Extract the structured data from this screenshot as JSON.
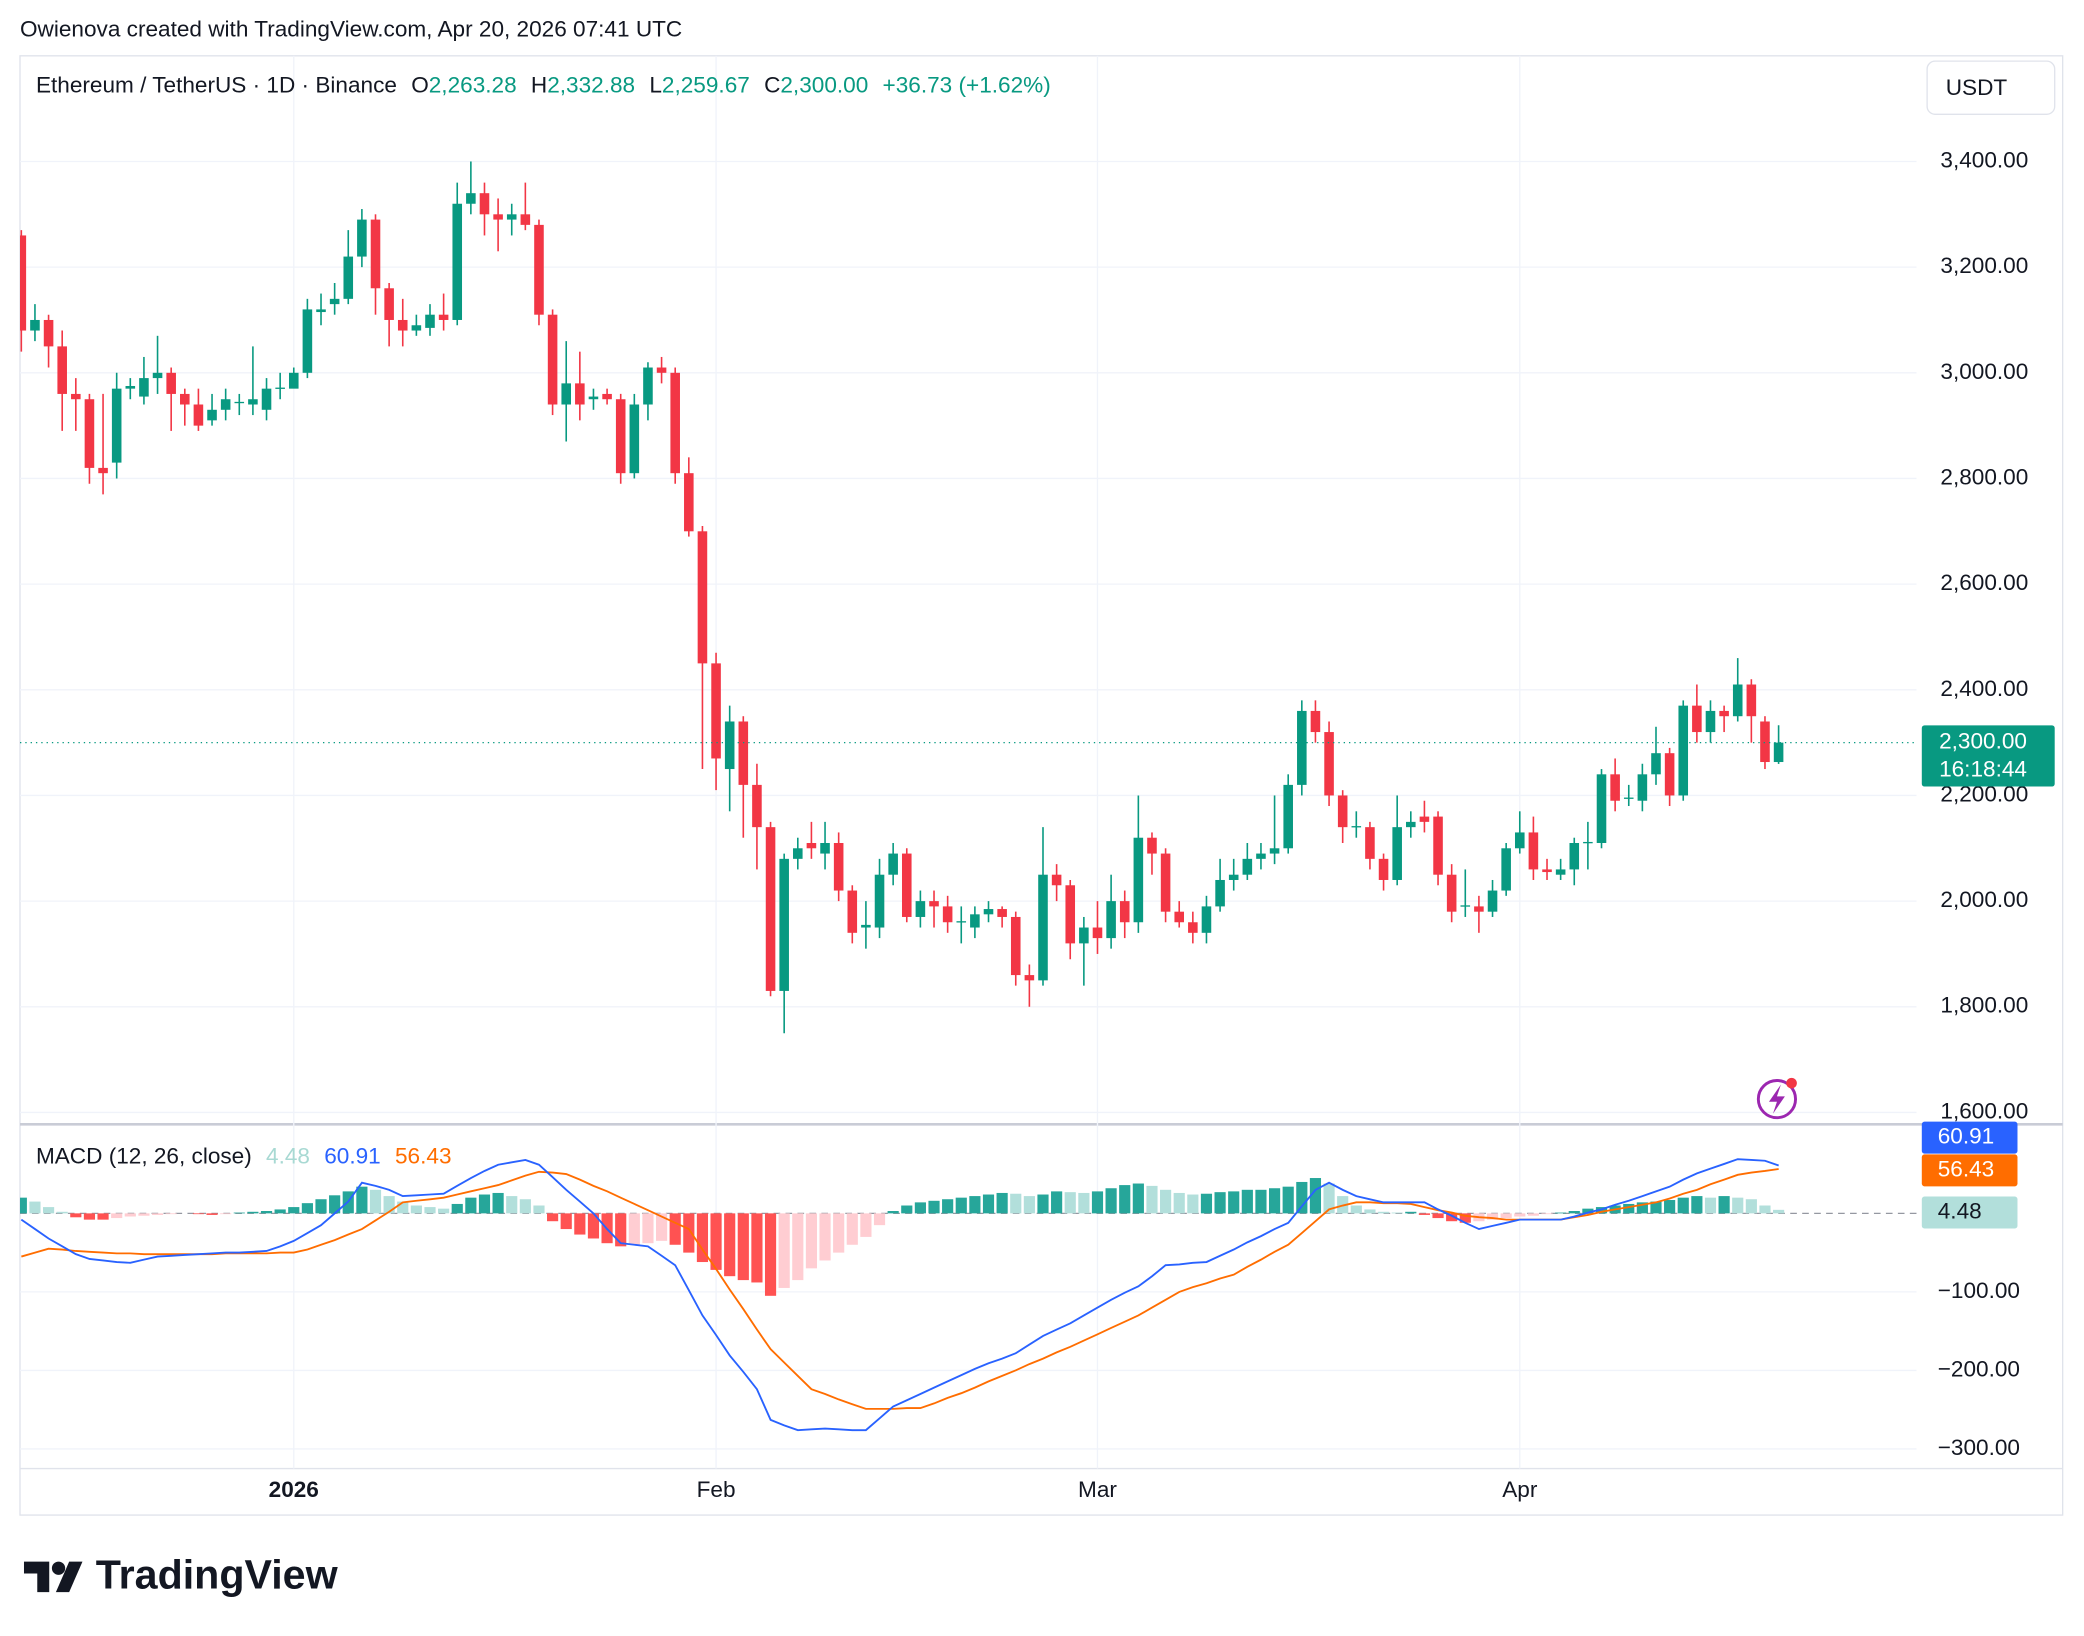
{
  "header": {
    "attribution": "Owienova created with TradingView.com, Apr 20, 2026 07:41 UTC",
    "currency_button": "USDT",
    "brand": "TradingView"
  },
  "chart_data": [
    {
      "type": "candlestick",
      "symbol": "Ethereum / TetherUS · 1D · Binance",
      "legend": {
        "o_label": "O",
        "o": "2,263.28",
        "h_label": "H",
        "h": "2,332.88",
        "l_label": "L",
        "l": "2,259.67",
        "c_label": "C",
        "c": "2,300.00",
        "change": "+36.73 (+1.62%)"
      },
      "categories": [
        null,
        null,
        null,
        null,
        null,
        null,
        null,
        null,
        null,
        null,
        null,
        null,
        null,
        null,
        null,
        null,
        null,
        null,
        null,
        null,
        "2026",
        null,
        null,
        null,
        null,
        null,
        null,
        null,
        null,
        null,
        null,
        null,
        null,
        null,
        null,
        null,
        null,
        null,
        null,
        null,
        null,
        null,
        null,
        null,
        null,
        null,
        null,
        null,
        null,
        null,
        null,
        "Feb",
        null,
        null,
        null,
        null,
        null,
        null,
        null,
        null,
        null,
        null,
        null,
        null,
        null,
        null,
        null,
        null,
        null,
        null,
        null,
        null,
        null,
        null,
        null,
        null,
        null,
        null,
        null,
        "Mar",
        null,
        null,
        null,
        null,
        null,
        null,
        null,
        null,
        null,
        null,
        null,
        null,
        null,
        null,
        null,
        null,
        null,
        null,
        null,
        null,
        null,
        null,
        null,
        null,
        null,
        null,
        null,
        null,
        null,
        null,
        "Apr",
        null,
        null,
        null,
        null,
        null,
        null,
        null,
        null,
        null,
        null,
        null,
        null,
        null,
        null,
        null,
        null,
        null,
        null,
        null
      ],
      "open": [
        3260,
        3080,
        3100,
        3050,
        2960,
        2950,
        2820,
        2830,
        2970,
        2955,
        2990,
        3000,
        2960,
        2940,
        2910,
        2930,
        2945,
        2940,
        2930,
        2970,
        2970,
        3000,
        3115,
        3130,
        3140,
        3220,
        3290,
        3160,
        3100,
        3080,
        3085,
        3110,
        3100,
        3320,
        3340,
        3300,
        3290,
        3300,
        3280,
        3110,
        2940,
        2980,
        2950,
        2960,
        2950,
        2810,
        2940,
        3010,
        3000,
        2810,
        2700,
        2450,
        2250,
        2340,
        2220,
        2140,
        1830,
        2080,
        2110,
        2090,
        2110,
        2020,
        1950,
        1950,
        2050,
        2090,
        1970,
        2000,
        1990,
        1960,
        1950,
        1975,
        1985,
        1970,
        1860,
        1850,
        2050,
        2030,
        1920,
        1950,
        1930,
        2000,
        1960,
        2120,
        2090,
        1980,
        1960,
        1940,
        1990,
        2040,
        2050,
        2080,
        2090,
        2100,
        2220,
        2360,
        2320,
        2200,
        2140,
        2140,
        2080,
        2040,
        2140,
        2160,
        2160,
        2050,
        1990,
        1990,
        1980,
        2020,
        2100,
        2130,
        2060,
        2050,
        2060,
        2110,
        2110,
        2240,
        2195,
        2190,
        2240,
        2280,
        2200,
        2370,
        2320,
        2360,
        2350,
        2410,
        2340,
        2263.28
      ],
      "high": [
        3270,
        3130,
        3110,
        3080,
        2990,
        2960,
        2960,
        3000,
        2990,
        3030,
        3070,
        3010,
        2970,
        2970,
        2960,
        2970,
        2960,
        3050,
        2990,
        3000,
        3010,
        3140,
        3150,
        3170,
        3270,
        3310,
        3300,
        3170,
        3140,
        3110,
        3130,
        3150,
        3360,
        3400,
        3360,
        3330,
        3320,
        3360,
        3290,
        3120,
        3060,
        3040,
        2970,
        2970,
        2960,
        2960,
        3020,
        3030,
        3010,
        2840,
        2710,
        2470,
        2370,
        2350,
        2260,
        2150,
        2090,
        2120,
        2150,
        2150,
        2130,
        2030,
        2000,
        2080,
        2110,
        2100,
        2020,
        2020,
        2010,
        1990,
        1990,
        2000,
        1990,
        1980,
        1880,
        2140,
        2070,
        2040,
        1970,
        2000,
        2050,
        2020,
        2200,
        2130,
        2100,
        2000,
        1980,
        2010,
        2080,
        2080,
        2110,
        2110,
        2200,
        2240,
        2380,
        2380,
        2340,
        2210,
        2170,
        2150,
        2090,
        2200,
        2170,
        2190,
        2170,
        2070,
        2060,
        2010,
        2040,
        2110,
        2170,
        2160,
        2080,
        2080,
        2120,
        2150,
        2250,
        2270,
        2220,
        2260,
        2330,
        2290,
        2380,
        2410,
        2380,
        2370,
        2460,
        2420,
        2350,
        2332.88
      ],
      "low": [
        3040,
        3060,
        3010,
        2890,
        2890,
        2790,
        2770,
        2800,
        2950,
        2940,
        2960,
        2890,
        2900,
        2890,
        2900,
        2910,
        2920,
        2920,
        2910,
        2950,
        2980,
        2990,
        3090,
        3110,
        3130,
        3200,
        3110,
        3050,
        3050,
        3070,
        3070,
        3080,
        3090,
        3300,
        3260,
        3230,
        3260,
        3270,
        3090,
        2920,
        2870,
        2910,
        2930,
        2940,
        2790,
        2800,
        2910,
        2980,
        2790,
        2690,
        2250,
        2210,
        2170,
        2120,
        2060,
        1820,
        1750,
        2060,
        2080,
        2060,
        2000,
        1920,
        1910,
        1930,
        2030,
        1960,
        1950,
        1950,
        1940,
        1920,
        1930,
        1960,
        1950,
        1840,
        1800,
        1840,
        2000,
        1890,
        1840,
        1900,
        1910,
        1930,
        1940,
        2050,
        1960,
        1950,
        1920,
        1920,
        1980,
        2020,
        2040,
        2060,
        2070,
        2090,
        2200,
        2300,
        2180,
        2110,
        2120,
        2060,
        2020,
        2030,
        2120,
        2130,
        2030,
        1960,
        1970,
        1940,
        1970,
        2010,
        2090,
        2040,
        2040,
        2040,
        2030,
        2060,
        2100,
        2170,
        2180,
        2170,
        2220,
        2180,
        2190,
        2300,
        2300,
        2320,
        2340,
        2300,
        2250,
        2259.67
      ],
      "close": [
        3080,
        3100,
        3050,
        2960,
        2950,
        2820,
        2810,
        2970,
        2975,
        2990,
        3000,
        2960,
        2940,
        2900,
        2930,
        2950,
        2945,
        2950,
        2970,
        2972,
        3000,
        3120,
        3120,
        3140,
        3220,
        3290,
        3160,
        3100,
        3080,
        3090,
        3110,
        3100,
        3320,
        3340,
        3300,
        3290,
        3300,
        3280,
        3110,
        2940,
        2980,
        2940,
        2955,
        2950,
        2810,
        2940,
        3010,
        3000,
        2810,
        2700,
        2450,
        2270,
        2340,
        2220,
        2140,
        1830,
        2080,
        2100,
        2100,
        2110,
        2020,
        1940,
        1955,
        2050,
        2090,
        1970,
        2000,
        1990,
        1960,
        1962,
        1975,
        1985,
        1970,
        1860,
        1850,
        2050,
        2030,
        1920,
        1950,
        1930,
        2000,
        1960,
        2120,
        2090,
        1980,
        1960,
        1940,
        1990,
        2040,
        2050,
        2080,
        2090,
        2100,
        2220,
        2360,
        2320,
        2200,
        2140,
        2142,
        2080,
        2040,
        2140,
        2150,
        2150,
        2050,
        1980,
        1992,
        1980,
        2020,
        2100,
        2130,
        2060,
        2055,
        2060,
        2110,
        2112,
        2240,
        2190,
        2196,
        2240,
        2280,
        2200,
        2370,
        2320,
        2360,
        2350,
        2410,
        2350,
        2263.28,
        2300
      ],
      "up_color": "#089981",
      "down_color": "#f23645",
      "ylim": [
        1580,
        3600
      ],
      "yticks": [
        {
          "value": 1600,
          "label": "1,600.00"
        },
        {
          "value": 1800,
          "label": "1,800.00"
        },
        {
          "value": 2000,
          "label": "2,000.00"
        },
        {
          "value": 2200,
          "label": "2,200.00"
        },
        {
          "value": 2400,
          "label": "2,400.00"
        },
        {
          "value": 2600,
          "label": "2,600.00"
        },
        {
          "value": 2800,
          "label": "2,800.00"
        },
        {
          "value": 3000,
          "label": "3,000.00"
        },
        {
          "value": 3200,
          "label": "3,200.00"
        },
        {
          "value": 3400,
          "label": "3,400.00"
        }
      ],
      "grid": true,
      "last_price_label": "2,300.00",
      "countdown": "16:18:44"
    },
    {
      "type": "macd",
      "title": "MACD (12, 26, close)",
      "legend_values": [
        "4.48",
        "60.91",
        "56.43"
      ],
      "ylim": [
        -325,
        110
      ],
      "yticks": [
        {
          "value": -300,
          "label": "−300.00"
        },
        {
          "value": -200,
          "label": "−200.00"
        },
        {
          "value": -100,
          "label": "−100.00"
        }
      ],
      "grid": true,
      "histogram": {
        "colors": {
          "positive_rising": "#26a69a",
          "positive_falling": "#b2dfdb",
          "negative_falling": "#ff5252",
          "negative_rising": "#ffcdd2"
        },
        "values": [
          20,
          15,
          8,
          2,
          -5,
          -8,
          -8,
          -6,
          -4,
          -3,
          -2,
          -1,
          0,
          -1,
          -2,
          -1,
          1,
          2,
          3,
          5,
          8,
          13,
          18,
          23,
          28,
          34,
          30,
          22,
          15,
          10,
          8,
          6,
          12,
          20,
          24,
          26,
          22,
          18,
          10,
          -10,
          -20,
          -27,
          -32,
          -38,
          -42,
          -40,
          -38,
          -35,
          -40,
          -50,
          -62,
          -72,
          -80,
          -85,
          -88,
          -105,
          -95,
          -85,
          -70,
          -60,
          -50,
          -40,
          -30,
          -15,
          3,
          10,
          14,
          16,
          18,
          20,
          22,
          24,
          26,
          25,
          22,
          24,
          28,
          27,
          26,
          28,
          32,
          36,
          38,
          35,
          30,
          26,
          24,
          25,
          27,
          28,
          30,
          30,
          32,
          34,
          40,
          45,
          38,
          22,
          10,
          5,
          2,
          1,
          2,
          -2,
          -6,
          -10,
          -12,
          -10,
          -8,
          -6,
          -4,
          -3,
          -1,
          1,
          3,
          6,
          8,
          10,
          12,
          14,
          15,
          17,
          20,
          22,
          20,
          22,
          20,
          18,
          10,
          4.48
        ]
      },
      "macd": {
        "color": "#2962ff",
        "values": [
          -8,
          -20,
          -32,
          -42,
          -52,
          -58,
          -60,
          -62,
          -63,
          -59,
          -55,
          -54,
          -53,
          -52,
          -51,
          -50,
          -50,
          -49,
          -48,
          -42,
          -35,
          -25,
          -15,
          0,
          15,
          39,
          35,
          30,
          22,
          23,
          24,
          25,
          35,
          45,
          54,
          62,
          65,
          68,
          62,
          46,
          30,
          15,
          0,
          -20,
          -38,
          -40,
          -42,
          -54,
          -66,
          -98,
          -130,
          -155,
          -181,
          -202,
          -224,
          -263,
          -270,
          -276,
          -275,
          -274,
          -275,
          -276,
          -276,
          -261,
          -246,
          -238,
          -230,
          -222,
          -214,
          -206,
          -198,
          -191,
          -185,
          -178,
          -167,
          -156,
          -148,
          -140,
          -130,
          -120,
          -110,
          -101,
          -93,
          -80,
          -66,
          -65,
          -63,
          -62,
          -54,
          -46,
          -37,
          -29,
          -20,
          -12,
          9,
          30,
          39,
          30,
          22,
          18,
          14,
          14,
          14,
          14,
          5,
          -3,
          -12,
          -20,
          -16,
          -12,
          -8,
          -8,
          -8,
          -8,
          -4,
          1,
          5,
          11,
          16,
          22,
          28,
          34,
          43,
          51,
          57,
          63,
          69,
          68,
          67,
          60.91
        ]
      },
      "signal": {
        "color": "#ff6d00",
        "values": [
          -55,
          -50,
          -45,
          -46,
          -48,
          -49,
          -50,
          -51,
          -51,
          -52,
          -52,
          -52,
          -52,
          -52,
          -52,
          -51,
          -51,
          -51,
          -51,
          -50,
          -50,
          -46,
          -40,
          -34,
          -27,
          -20,
          -9,
          2,
          14,
          16,
          18,
          20,
          24,
          28,
          32,
          36,
          42,
          48,
          53,
          52,
          50,
          43,
          35,
          28,
          20,
          12,
          4,
          -4,
          -12,
          -20,
          -46,
          -71,
          -97,
          -122,
          -148,
          -173,
          -190,
          -207,
          -224,
          -230,
          -237,
          -243,
          -249,
          -249,
          -249,
          -248,
          -248,
          -242,
          -235,
          -229,
          -222,
          -214,
          -207,
          -200,
          -192,
          -185,
          -177,
          -170,
          -162,
          -154,
          -146,
          -138,
          -130,
          -120,
          -110,
          -100,
          -94,
          -89,
          -83,
          -78,
          -68,
          -59,
          -49,
          -40,
          -25,
          -10,
          5,
          10,
          14,
          14,
          13,
          13,
          12,
          8,
          4,
          1,
          -3,
          -5,
          -6,
          -8,
          -8,
          -8,
          -8,
          -8,
          -5,
          -2,
          2,
          5,
          8,
          11,
          14,
          19,
          25,
          30,
          37,
          43,
          49,
          52,
          54,
          56.43
        ]
      }
    }
  ]
}
